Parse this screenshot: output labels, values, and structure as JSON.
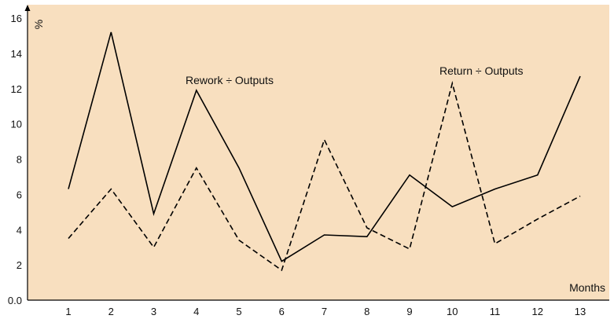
{
  "chart_data": {
    "type": "line",
    "title": "",
    "xlabel": "Months",
    "ylabel": "%",
    "categories": [
      1,
      2,
      3,
      4,
      5,
      6,
      7,
      8,
      9,
      10,
      11,
      12,
      13
    ],
    "ylim": [
      0,
      16
    ],
    "yticks": [
      "0.0",
      "2",
      "4",
      "6",
      "8",
      "10",
      "12",
      "14",
      "16"
    ],
    "grid": false,
    "background_color": "#f8dfbf",
    "series": [
      {
        "name": "Rework ÷ Outputs",
        "style": "solid",
        "color": "#000000",
        "values": [
          6.3,
          15.2,
          4.9,
          11.9,
          7.5,
          2.2,
          3.7,
          3.6,
          7.1,
          5.3,
          6.3,
          7.1,
          12.7
        ]
      },
      {
        "name": "Return ÷ Outputs",
        "style": "dashed",
        "color": "#000000",
        "values": [
          3.5,
          6.3,
          3.0,
          7.5,
          3.4,
          1.7,
          9.1,
          4.1,
          2.9,
          12.3,
          3.2,
          4.6,
          5.9
        ]
      }
    ]
  }
}
